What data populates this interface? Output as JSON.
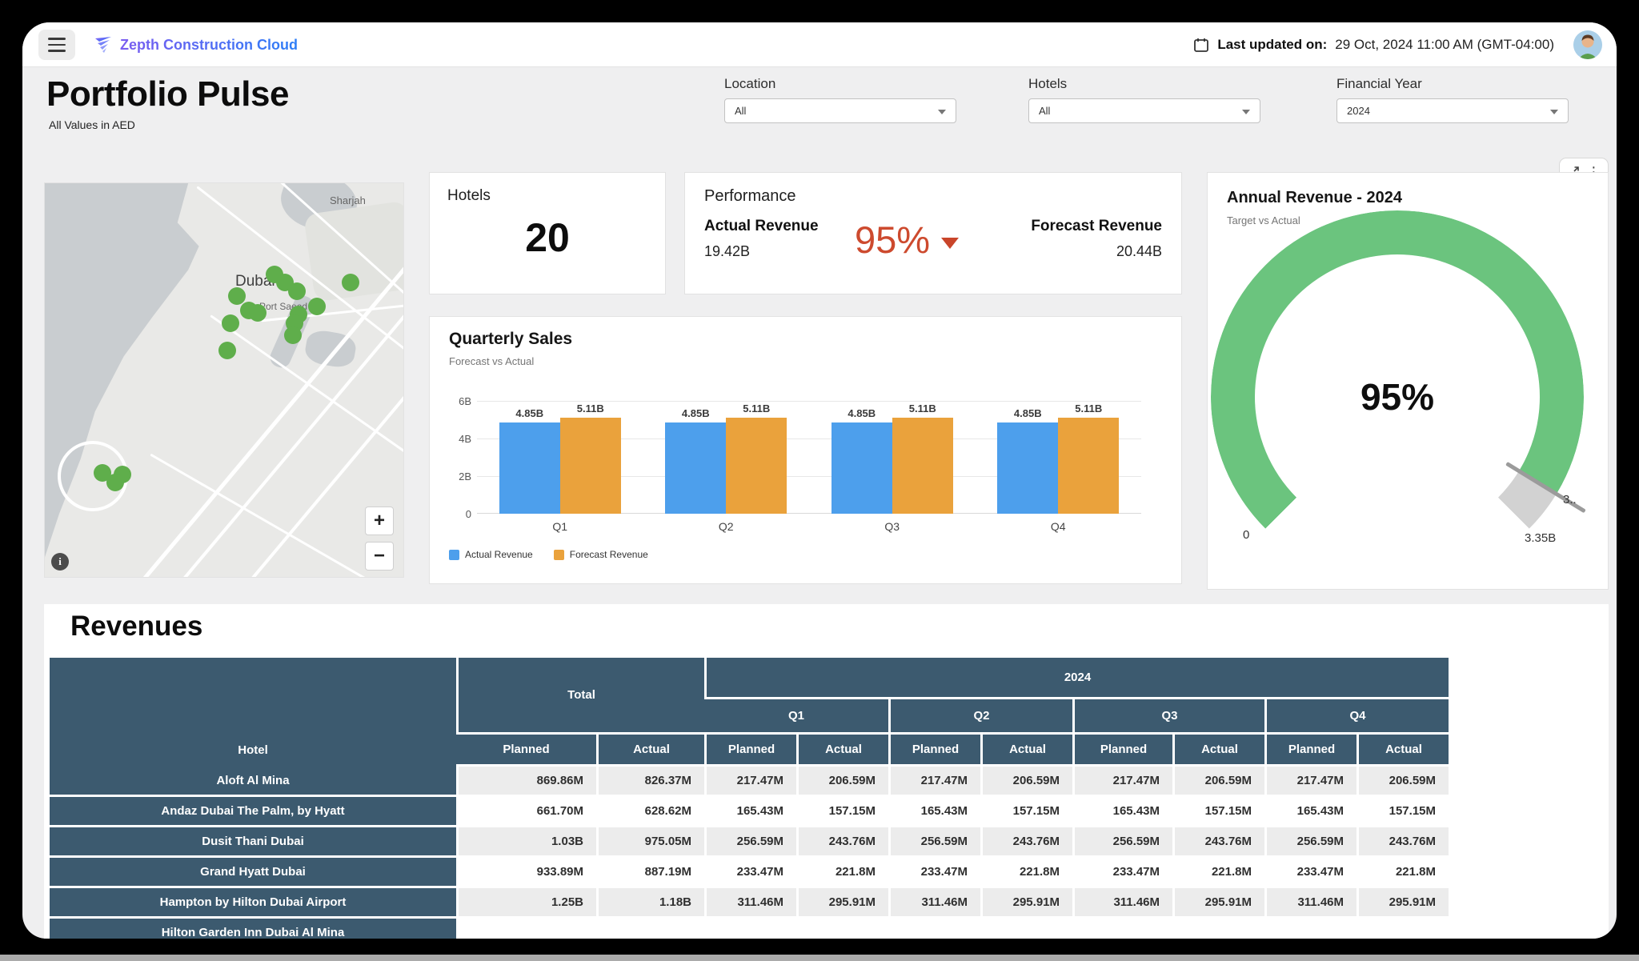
{
  "window": {
    "topbar": {
      "brand": "Zepth Construction Cloud",
      "last_updated_label": "Last updated on:",
      "last_updated_value": "29 Oct, 2024 11:00 AM (GMT-04:00)"
    }
  },
  "page": {
    "title": "Portfolio Pulse",
    "subtitle": "All Values in AED"
  },
  "filters": [
    {
      "label": "Location",
      "value": "All"
    },
    {
      "label": "Hotels",
      "value": "All"
    },
    {
      "label": "Financial Year",
      "value": "2024"
    }
  ],
  "map": {
    "labels": {
      "city": "Dubai",
      "district": "Port Saeed",
      "region": "Sharjah"
    },
    "zoom_in": "+",
    "zoom_out": "−",
    "attribution": "i",
    "marker_color": "#5FAE4B",
    "markers": [
      [
        287,
        114
      ],
      [
        300,
        124
      ],
      [
        315,
        135
      ],
      [
        382,
        124
      ],
      [
        240,
        141
      ],
      [
        255,
        159
      ],
      [
        266,
        162
      ],
      [
        340,
        154
      ],
      [
        317,
        164
      ],
      [
        312,
        175
      ],
      [
        310,
        190
      ],
      [
        232,
        175
      ],
      [
        228,
        209
      ],
      [
        72,
        362
      ],
      [
        97,
        364
      ],
      [
        88,
        374
      ]
    ]
  },
  "kpis": {
    "hotels": {
      "label": "Hotels",
      "value": "20"
    },
    "performance": {
      "title": "Performance",
      "actual_label": "Actual Revenue",
      "actual_value": "19.42B",
      "pct": "95%",
      "forecast_label": "Forecast Revenue",
      "forecast_value": "20.44B",
      "accent_color": "#CD4A2E"
    }
  },
  "chart_data": [
    {
      "type": "bar",
      "title": "Quarterly Sales",
      "subtitle": "Forecast vs Actual",
      "categories": [
        "Q1",
        "Q2",
        "Q3",
        "Q4"
      ],
      "series": [
        {
          "name": "Actual Revenue",
          "color": "#4D9FEC",
          "values": [
            4.85,
            4.85,
            4.85,
            4.85
          ],
          "labels": [
            "4.85B",
            "4.85B",
            "4.85B",
            "4.85B"
          ]
        },
        {
          "name": "Forecast Revenue",
          "color": "#EAA23C",
          "values": [
            5.11,
            5.11,
            5.11,
            5.11
          ],
          "labels": [
            "5.11B",
            "5.11B",
            "5.11B",
            "5.11B"
          ]
        }
      ],
      "xlabel": "",
      "ylabel": "",
      "ylim": [
        0,
        6
      ],
      "yticks": [
        "6B",
        "4B",
        "2B",
        "0"
      ],
      "grid": true,
      "legend_position": "bottom"
    },
    {
      "type": "gauge",
      "title": "Annual Revenue - 2024",
      "subtitle": "Target vs Actual",
      "value_pct": 95,
      "center_label": "95%",
      "min_label": "0",
      "max_label": "3.35B",
      "partial_label": "3..",
      "sweep_degrees": 270,
      "color": "#6BC47E",
      "track_color": "#D2D2D2"
    }
  ],
  "revenues": {
    "title": "Revenues",
    "table": {
      "hotel_header": "Hotel",
      "total_header": "Total",
      "year_header": "2024",
      "quarter_headers": [
        "Q1",
        "Q2",
        "Q3",
        "Q4"
      ],
      "measure_headers": [
        "Planned",
        "Actual"
      ],
      "rows": [
        {
          "hotel": "Aloft Al Mina",
          "values": [
            "869.86M",
            "826.37M",
            "217.47M",
            "206.59M",
            "217.47M",
            "206.59M",
            "217.47M",
            "206.59M",
            "217.47M",
            "206.59M"
          ]
        },
        {
          "hotel": "Andaz Dubai The Palm, by Hyatt",
          "values": [
            "661.70M",
            "628.62M",
            "165.43M",
            "157.15M",
            "165.43M",
            "157.15M",
            "165.43M",
            "157.15M",
            "165.43M",
            "157.15M"
          ]
        },
        {
          "hotel": "Dusit Thani Dubai",
          "values": [
            "1.03B",
            "975.05M",
            "256.59M",
            "243.76M",
            "256.59M",
            "243.76M",
            "256.59M",
            "243.76M",
            "256.59M",
            "243.76M"
          ]
        },
        {
          "hotel": "Grand Hyatt Dubai",
          "values": [
            "933.89M",
            "887.19M",
            "233.47M",
            "221.8M",
            "233.47M",
            "221.8M",
            "233.47M",
            "221.8M",
            "233.47M",
            "221.8M"
          ]
        },
        {
          "hotel": "Hampton by Hilton Dubai Airport",
          "values": [
            "1.25B",
            "1.18B",
            "311.46M",
            "295.91M",
            "311.46M",
            "295.91M",
            "311.46M",
            "295.91M",
            "311.46M",
            "295.91M"
          ]
        },
        {
          "hotel": "Hilton Garden Inn Dubai Al Mina",
          "values": [
            "",
            "",
            "",
            "",
            "",
            "",
            "",
            "",
            "",
            ""
          ]
        }
      ]
    }
  },
  "colors": {
    "table_header": "#3C5A6F",
    "bar_actual": "#4D9FEC",
    "bar_forecast": "#EAA23C",
    "gauge_green": "#6BC47E",
    "accent_red": "#CD4A2E",
    "marker_green": "#5FAE4B"
  }
}
